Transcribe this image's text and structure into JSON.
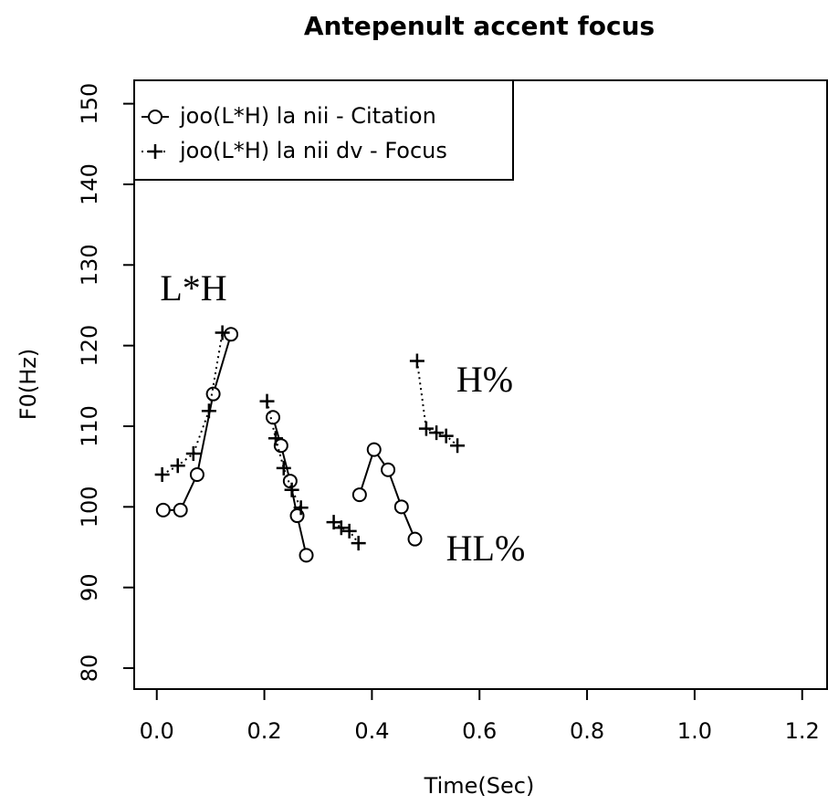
{
  "chart_data": {
    "type": "line",
    "title": "Antepenult accent focus",
    "xlabel": "Time(Sec)",
    "ylabel": "F0(Hz)",
    "xlim": [
      -0.042,
      1.248
    ],
    "ylim": [
      77.4,
      152.9
    ],
    "xticks": [
      {
        "value": 0,
        "label": "0.0"
      },
      0.2,
      0.4,
      0.6,
      0.8,
      {
        "value": 1,
        "label": "1.0"
      },
      1.2
    ],
    "yticks": [
      80,
      90,
      100,
      110,
      120,
      130,
      140,
      150
    ],
    "legend": "top-left",
    "series": [
      {
        "name": "joo(L*H) la nii - Citation",
        "color": "#000000",
        "marker": "circle",
        "linestyle": "solid",
        "x": [
          0.012,
          0.044,
          0.075,
          0.105,
          0.138,
          null,
          0.216,
          0.231,
          0.248,
          0.261,
          0.278,
          null,
          0.377,
          0.404,
          0.43,
          0.455,
          0.48
        ],
        "values": [
          99.6,
          99.6,
          104.0,
          114.0,
          121.4,
          null,
          111.1,
          107.6,
          103.2,
          98.9,
          94.0,
          null,
          101.5,
          107.1,
          104.6,
          100.0,
          96.0
        ]
      },
      {
        "name": "joo(L*H) la nii dv - Focus",
        "color": "#000000",
        "marker": "plus",
        "linestyle": "dotted",
        "x": [
          0.01,
          0.039,
          0.068,
          0.097,
          0.122,
          null,
          0.205,
          0.221,
          0.236,
          0.251,
          0.268,
          null,
          0.329,
          0.343,
          0.358,
          0.375,
          null,
          0.484,
          0.501,
          0.52,
          0.538,
          0.559
        ],
        "values": [
          104.0,
          105.1,
          106.6,
          111.9,
          121.6,
          null,
          113.1,
          108.5,
          104.8,
          102.1,
          99.9,
          null,
          98.1,
          97.4,
          97.0,
          95.5,
          null,
          118.1,
          109.7,
          109.2,
          108.8,
          107.6
        ]
      }
    ],
    "annotations": [
      "L*H",
      "H%",
      "HL%"
    ]
  }
}
